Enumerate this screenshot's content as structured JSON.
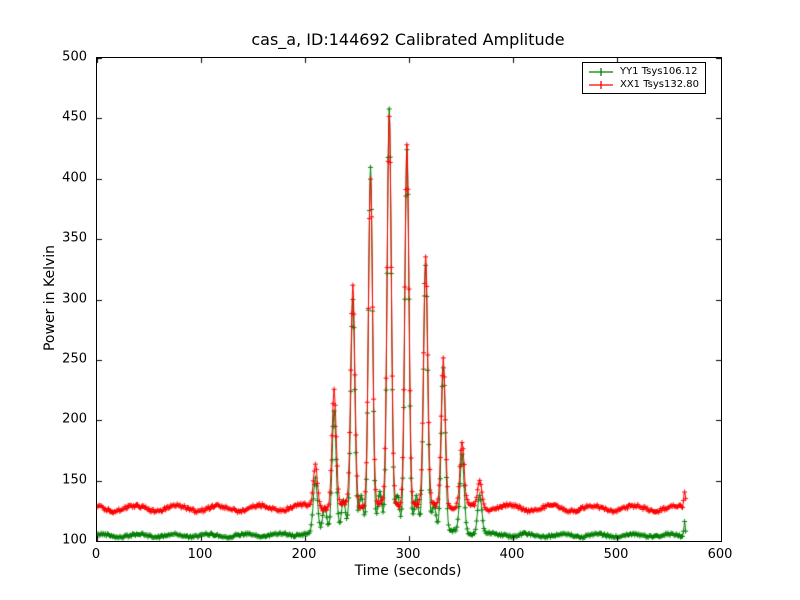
{
  "chart_data": {
    "type": "line",
    "title": "cas_a, ID:144692 Calibrated Amplitude",
    "xlabel": "Time (seconds)",
    "ylabel": "Power in Kelvin",
    "xlim": [
      0,
      600
    ],
    "ylim": [
      100,
      500
    ],
    "xticks": [
      0,
      100,
      200,
      300,
      400,
      500,
      600
    ],
    "yticks": [
      100,
      150,
      200,
      250,
      300,
      350,
      400,
      450,
      500
    ],
    "grid": false,
    "legend_position": "upper right",
    "marker": "+",
    "t_range": [
      0,
      566
    ],
    "series": [
      {
        "name": "YY1 Tsys106.12",
        "color": "#008000",
        "marker": "+",
        "baseline": 104.5,
        "noise": 1.2,
        "wobble_amp": 1.2,
        "wobble_period": 34,
        "wobble_phase": 0.5,
        "envelope": {
          "center": 285,
          "sigma": 55,
          "amp": 5
        },
        "peak_sigma": 2.0,
        "peaks": [
          [
            210,
            148
          ],
          [
            219,
            126
          ],
          [
            228,
            205
          ],
          [
            237,
            130
          ],
          [
            246,
            295
          ],
          [
            254,
            133
          ],
          [
            263,
            406
          ],
          [
            272,
            135
          ],
          [
            281,
            452
          ],
          [
            289,
            134
          ],
          [
            298,
            420
          ],
          [
            307,
            131
          ],
          [
            316,
            322
          ],
          [
            324,
            127
          ],
          [
            333,
            242
          ],
          [
            351,
            168
          ],
          [
            368,
            138
          ],
          [
            565,
            117,
            0.8
          ]
        ]
      },
      {
        "name": "XX1 Tsys132.80",
        "color": "#ff0000",
        "marker": "+",
        "baseline": 127,
        "noise": 1.5,
        "wobble_amp": 2.2,
        "wobble_period": 40,
        "wobble_phase": 2.1,
        "envelope": {
          "center": 285,
          "sigma": 60,
          "amp": 3
        },
        "peak_sigma": 2.0,
        "peaks": [
          [
            210,
            163
          ],
          [
            228,
            222
          ],
          [
            246,
            308
          ],
          [
            263,
            398
          ],
          [
            281,
            448
          ],
          [
            298,
            427
          ],
          [
            316,
            331
          ],
          [
            333,
            250
          ],
          [
            351,
            179
          ],
          [
            368,
            150
          ],
          [
            565,
            141,
            0.8
          ]
        ]
      }
    ]
  }
}
